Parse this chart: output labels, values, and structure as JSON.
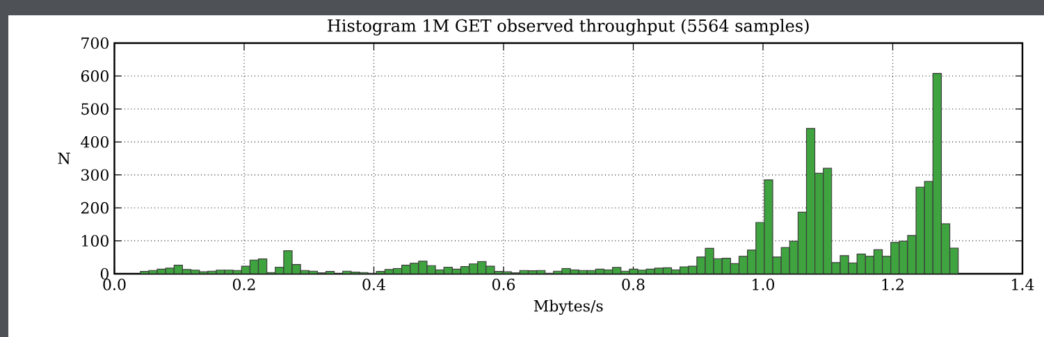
{
  "chart_data": {
    "type": "histogram",
    "title": "Histogram 1M GET observed throughput (5564 samples)",
    "xlabel": "Mbytes/s",
    "ylabel": "N",
    "bins": [
      0.04,
      0.053,
      0.066,
      0.079,
      0.092,
      0.105,
      0.118,
      0.131,
      0.144,
      0.157,
      0.17,
      0.183,
      0.196,
      0.209,
      0.222,
      0.235,
      0.248,
      0.261,
      0.274,
      0.287,
      0.3,
      0.313,
      0.326,
      0.339,
      0.352,
      0.365,
      0.378,
      0.391,
      0.404,
      0.417,
      0.43,
      0.443,
      0.456,
      0.469,
      0.482,
      0.495,
      0.508,
      0.521,
      0.534,
      0.547,
      0.56,
      0.573,
      0.586,
      0.599,
      0.612,
      0.625,
      0.638,
      0.651,
      0.664,
      0.677,
      0.69,
      0.703,
      0.716,
      0.729,
      0.742,
      0.755,
      0.768,
      0.781,
      0.794,
      0.807,
      0.82,
      0.833,
      0.846,
      0.859,
      0.872,
      0.885,
      0.898,
      0.911,
      0.924,
      0.937,
      0.95,
      0.963,
      0.976,
      0.989,
      1.002,
      1.015,
      1.028,
      1.041,
      1.054,
      1.067,
      1.08,
      1.093,
      1.106,
      1.119,
      1.132,
      1.145,
      1.158,
      1.171,
      1.184,
      1.197,
      1.21,
      1.223,
      1.236,
      1.249,
      1.262,
      1.275,
      1.288,
      1.301
    ],
    "values": [
      7,
      10,
      14,
      17,
      26,
      13,
      11,
      6,
      8,
      11,
      11,
      10,
      23,
      42,
      45,
      4,
      20,
      70,
      28,
      10,
      8,
      3,
      7,
      0,
      8,
      5,
      4,
      1,
      7,
      13,
      16,
      26,
      32,
      38,
      25,
      12,
      20,
      14,
      22,
      30,
      37,
      23,
      7,
      6,
      3,
      10,
      9,
      10,
      1,
      8,
      16,
      12,
      10,
      10,
      14,
      12,
      19,
      8,
      14,
      11,
      14,
      17,
      18,
      12,
      21,
      23,
      51,
      77,
      46,
      47,
      31,
      53,
      72,
      156,
      285,
      51,
      80,
      99,
      187,
      441,
      305,
      320,
      34,
      55,
      33,
      60,
      53,
      73,
      53,
      95,
      99,
      116,
      263,
      280,
      608,
      152,
      78
    ],
    "color": "#3fa33f",
    "xlim": [
      0,
      1.4
    ],
    "ylim": [
      0,
      700
    ],
    "xticks": [
      {
        "value": 0,
        "label": "0.0"
      },
      {
        "value": 0.2,
        "label": "0.2"
      },
      {
        "value": 0.4,
        "label": "0.4"
      },
      {
        "value": 0.6,
        "label": "0.6"
      },
      {
        "value": 0.8,
        "label": "0.8"
      },
      {
        "value": 1,
        "label": "1.0"
      },
      {
        "value": 1.2,
        "label": "1.2"
      },
      {
        "value": 1.4,
        "label": "1.4"
      }
    ],
    "yticks": [
      0,
      100,
      200,
      300,
      400,
      500,
      600,
      700
    ],
    "grid": true
  }
}
